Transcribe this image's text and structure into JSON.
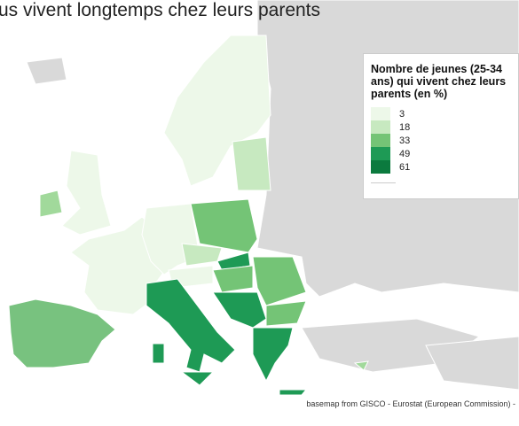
{
  "title": "us vivent longtemps chez leurs parents",
  "legend": {
    "title": "Nombre de jeunes (25-34 ans) qui vivent chez leurs parents (en %)",
    "items": [
      {
        "label": "3",
        "color": "#edf8e9"
      },
      {
        "label": "18",
        "color": "#c7e9c0"
      },
      {
        "label": "33",
        "color": "#74c476"
      },
      {
        "label": "49",
        "color": "#1e9a55"
      },
      {
        "label": "61",
        "color": "#0b7a3e"
      }
    ]
  },
  "source": "basemap from GISCO - Eurostat (European Commission) -"
}
